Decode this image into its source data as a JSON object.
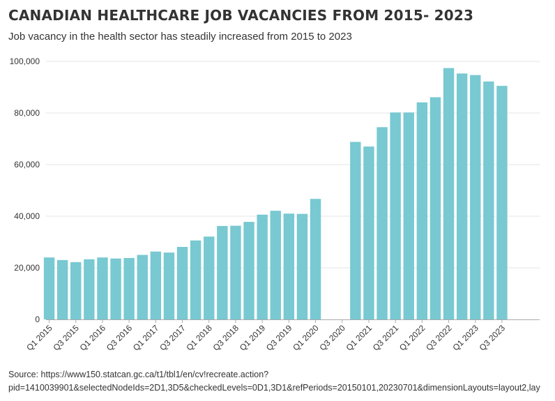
{
  "title": "CANADIAN HEALTHCARE JOB VACANCIES FROM 2015- 2023",
  "subtitle": "Job vacancy in the health sector has steadily increased from 2015 to 2023",
  "source_line1": "Source: https://www150.statcan.gc.ca/t1/tbl1/en/cv!recreate.action?",
  "source_line2": "pid=1410039901&selectedNodeIds=2D1,3D5&checkedLevels=0D1,3D1&refPeriods=20150101,20230701&dimensionLayouts=layout2,lay",
  "colors": {
    "bar": "#78c9d1",
    "grid": "#e6e6e6",
    "axis": "#aaaaaa",
    "text": "#333333"
  },
  "chart_data": {
    "type": "bar",
    "categories": [
      "Q1 2015",
      "Q2 2015",
      "Q3 2015",
      "Q4 2015",
      "Q1 2016",
      "Q2 2016",
      "Q3 2016",
      "Q4 2016",
      "Q1 2017",
      "Q2 2017",
      "Q3 2017",
      "Q4 2017",
      "Q1 2018",
      "Q2 2018",
      "Q3 2018",
      "Q4 2018",
      "Q1 2019",
      "Q2 2019",
      "Q3 2019",
      "Q4 2019",
      "Q1 2020",
      "Q2 2020",
      "Q3 2020",
      "Q4 2020",
      "Q1 2021",
      "Q2 2021",
      "Q3 2021",
      "Q4 2021",
      "Q1 2022",
      "Q2 2022",
      "Q3 2022",
      "Q4 2022",
      "Q1 2023",
      "Q2 2023",
      "Q3 2023"
    ],
    "x_tick_labels": [
      "Q1 2015",
      "Q3 2015",
      "Q1 2016",
      "Q3 2016",
      "Q1 2017",
      "Q3 2017",
      "Q1 2018",
      "Q3 2018",
      "Q1 2019",
      "Q3 2019",
      "Q1 2020",
      "Q3 2020",
      "Q1 2021",
      "Q3 2021",
      "Q1 2022",
      "Q3 2022",
      "Q1 2023",
      "Q3 2023"
    ],
    "values": [
      24000,
      23000,
      22200,
      23300,
      24000,
      23600,
      23800,
      25000,
      26300,
      25900,
      28100,
      30600,
      32100,
      36200,
      36300,
      37800,
      40600,
      42100,
      41000,
      40900,
      46700,
      null,
      null,
      68800,
      67000,
      74500,
      80200,
      80200,
      84100,
      86100,
      97400,
      95300,
      94700,
      92200,
      90500
    ],
    "y_ticks": [
      0,
      20000,
      40000,
      60000,
      80000,
      100000
    ],
    "y_tick_labels": [
      "0",
      "20,000",
      "40,000",
      "60,000",
      "80,000",
      "100,000"
    ],
    "ylim": [
      0,
      100000
    ],
    "xlabel": "",
    "ylabel": "",
    "grid": true,
    "legend": "none"
  }
}
